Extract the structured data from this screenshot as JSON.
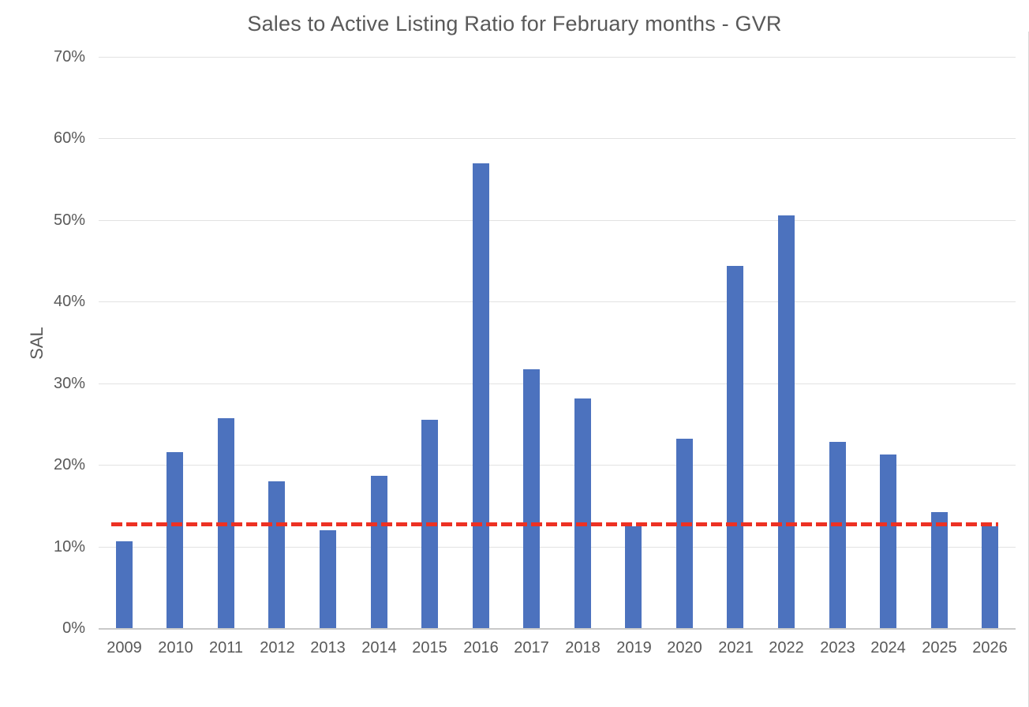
{
  "chart_data": {
    "type": "bar",
    "title": "Sales to Active Listing Ratio for February months - GVR",
    "xlabel": "",
    "ylabel": "SAL",
    "categories": [
      "2009",
      "2010",
      "2011",
      "2012",
      "2013",
      "2014",
      "2015",
      "2016",
      "2017",
      "2018",
      "2019",
      "2020",
      "2021",
      "2022",
      "2023",
      "2024",
      "2025",
      "2026"
    ],
    "values": [
      10.6,
      21.6,
      25.7,
      18.0,
      12.0,
      18.7,
      25.5,
      56.9,
      31.7,
      28.1,
      12.5,
      23.2,
      44.4,
      50.6,
      22.8,
      21.3,
      14.2,
      12.5
    ],
    "value_unit": "%",
    "ylim": [
      0,
      70
    ],
    "ytick_step": 10,
    "ytick_labels": [
      "0%",
      "10%",
      "20%",
      "30%",
      "40%",
      "50%",
      "60%",
      "70%"
    ],
    "grid": true,
    "legend_position": "none",
    "reference_line": {
      "type": "dashed-horizontal",
      "value": 12.8,
      "color": "#ed3123"
    },
    "bar_color": "#4c72be",
    "text_color": "#595959",
    "gridline_color": "#e2e2e2",
    "axis_line_color": "#c9c9c9",
    "background_color": "#ffffff"
  }
}
